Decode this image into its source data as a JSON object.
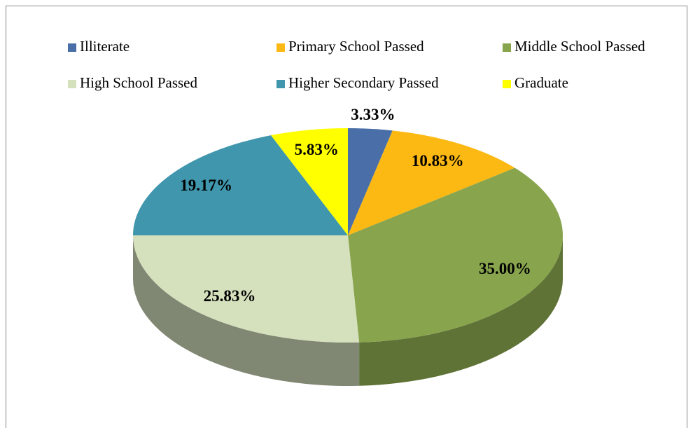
{
  "chart_data": {
    "type": "pie",
    "categories": [
      "Illiterate",
      "Primary School Passed",
      "Middle School Passed",
      "High School Passed",
      "Higher Secondary Passed",
      "Graduate"
    ],
    "values": [
      3.33,
      10.83,
      35.0,
      25.83,
      19.17,
      5.83
    ],
    "value_labels": [
      "3.33%",
      "10.83%",
      "35.00%",
      "25.83%",
      "19.17%",
      "5.83%"
    ],
    "colors": [
      "#4a6fa8",
      "#fdb913",
      "#88a44d",
      "#d5e0bd",
      "#3f96ad",
      "#ffff00"
    ],
    "legend": "top",
    "three_d": true
  }
}
